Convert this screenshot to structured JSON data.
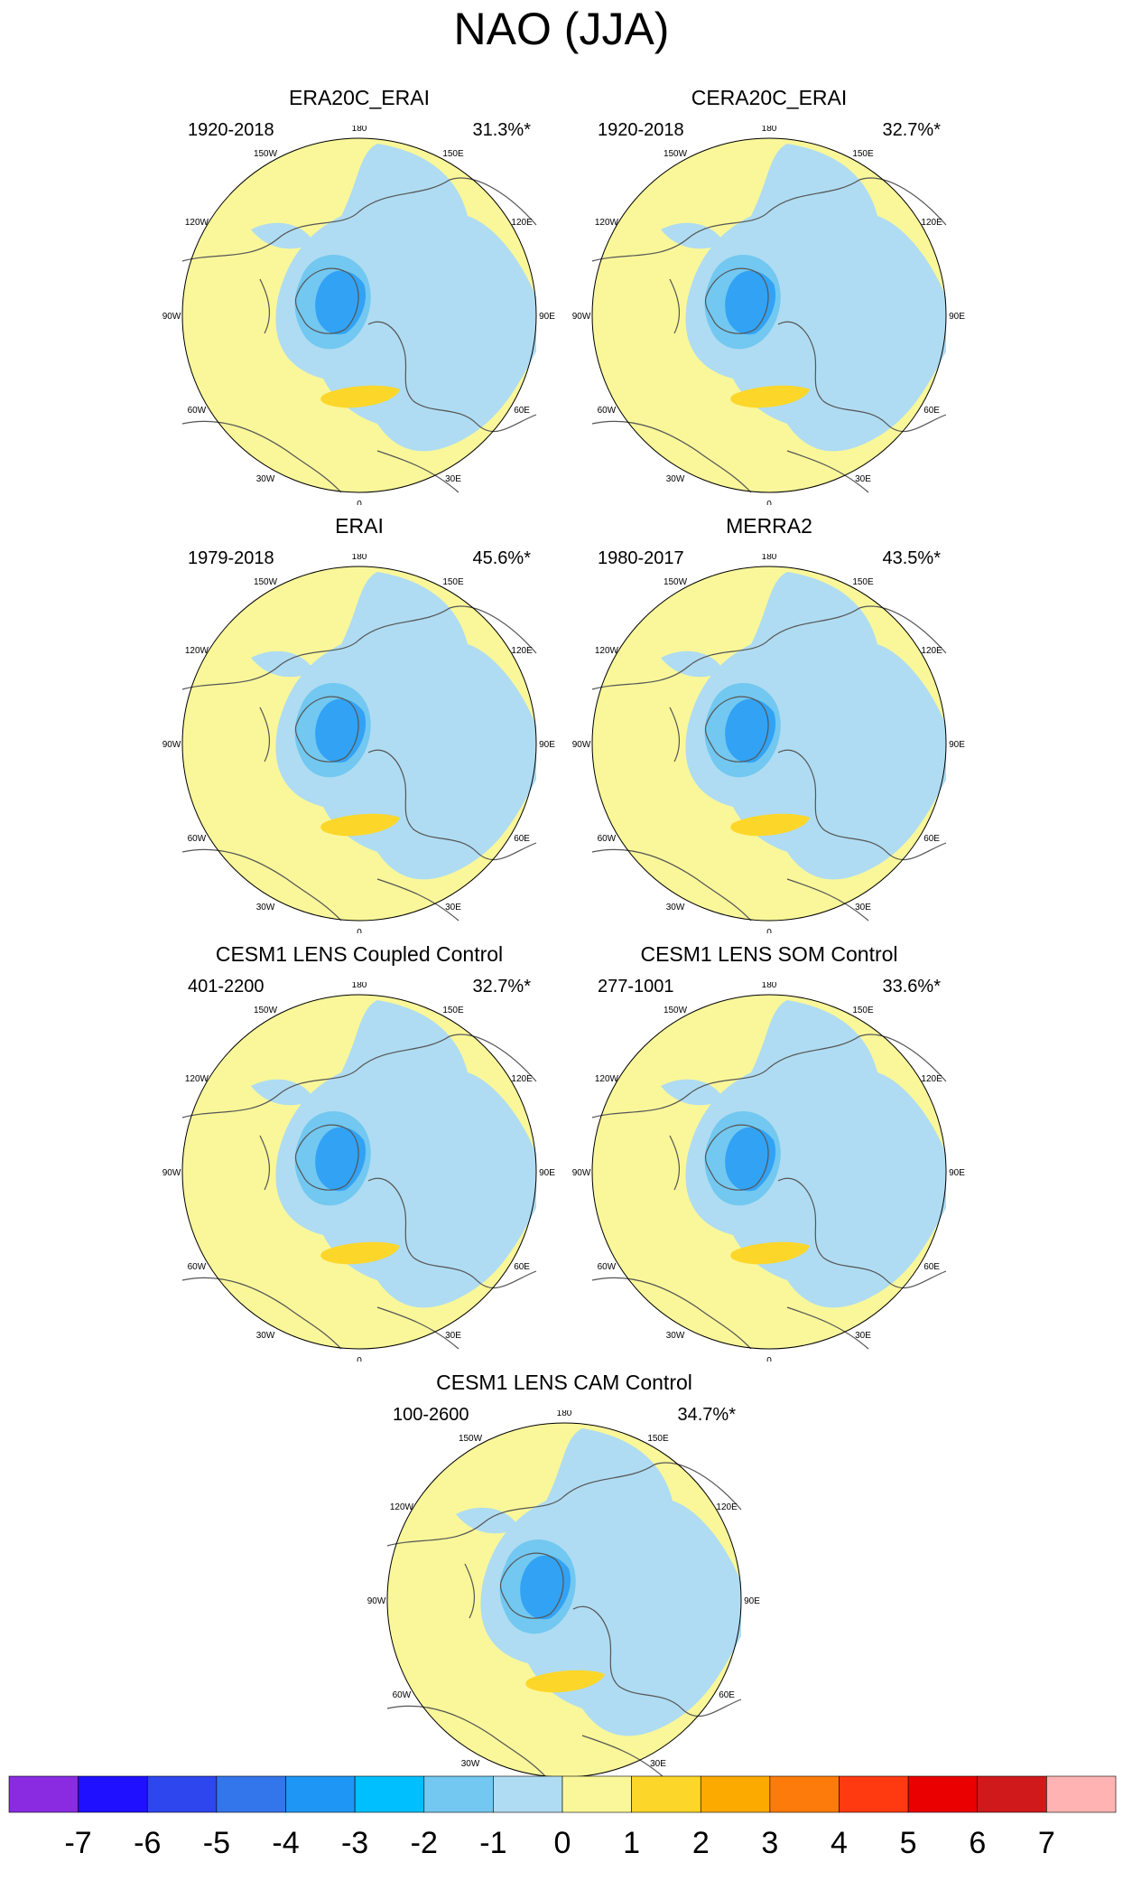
{
  "title": "NAO (JJA)",
  "colors": {
    "ocean_land_fill": "#f9f79a",
    "coast": "#555555",
    "levels": [
      "#8a2be2",
      "#1f10ff",
      "#2d46ee",
      "#3375ea",
      "#1e96f5",
      "#00bfff",
      "#72c8f0",
      "#afdcf2",
      "#f9f79a",
      "#fdd62a",
      "#fdaa00",
      "#fd7b0a",
      "#ff3a11",
      "#ea0000",
      "#d0191b",
      "#ffb3b3"
    ]
  },
  "panels": [
    {
      "title": "ERA20C_ERAI",
      "period": "1920-2018",
      "pct": "31.3%*"
    },
    {
      "title": "CERA20C_ERAI",
      "period": "1920-2018",
      "pct": "32.7%*"
    },
    {
      "title": "ERAI",
      "period": "1979-2018",
      "pct": "45.6%*"
    },
    {
      "title": "MERRA2",
      "period": "1980-2017",
      "pct": "43.5%*"
    },
    {
      "title": "CESM1 LENS Coupled Control",
      "period": "401-2200",
      "pct": "32.7%*"
    },
    {
      "title": "CESM1 LENS SOM Control",
      "period": "277-1001",
      "pct": "33.6%*"
    },
    {
      "title": "CESM1 LENS CAM Control",
      "period": "100-2600",
      "pct": "34.7%*"
    }
  ],
  "lon_labels": [
    "180",
    "150E",
    "120E",
    "90E",
    "60E",
    "30E",
    "0",
    "30W",
    "60W",
    "90W",
    "120W",
    "150W"
  ],
  "chart_data": {
    "type": "heatmap",
    "projection": "north polar stereographic",
    "title": "NAO (JJA)",
    "colorbar": {
      "levels": [
        -7,
        -6,
        -5,
        -4,
        -3,
        -2,
        -1,
        0,
        1,
        2,
        3,
        4,
        5,
        6,
        7
      ],
      "labels": [
        "-7",
        "-6",
        "-5",
        "-4",
        "-3",
        "-2",
        "-1",
        "0",
        "1",
        "2",
        "3",
        "4",
        "5",
        "6",
        "7"
      ]
    },
    "panels": [
      {
        "name": "ERA20C_ERAI",
        "period": "1920-2018",
        "variance_explained": "31.3%*",
        "min_level": -3,
        "max_level": 2
      },
      {
        "name": "CERA20C_ERAI",
        "period": "1920-2018",
        "variance_explained": "32.7%*",
        "min_level": -3,
        "max_level": 2
      },
      {
        "name": "ERAI",
        "period": "1979-2018",
        "variance_explained": "45.6%*",
        "min_level": -3,
        "max_level": 2
      },
      {
        "name": "MERRA2",
        "period": "1980-2017",
        "variance_explained": "43.5%*",
        "min_level": -3,
        "max_level": 2
      },
      {
        "name": "CESM1 LENS Coupled Control",
        "period": "401-2200",
        "variance_explained": "32.7%*",
        "min_level": -3,
        "max_level": 2
      },
      {
        "name": "CESM1 LENS SOM Control",
        "period": "277-1001",
        "variance_explained": "33.6%*",
        "min_level": -3,
        "max_level": 2
      },
      {
        "name": "CESM1 LENS CAM Control",
        "period": "100-2600",
        "variance_explained": "34.7%*",
        "min_level": -3,
        "max_level": 2
      }
    ]
  }
}
